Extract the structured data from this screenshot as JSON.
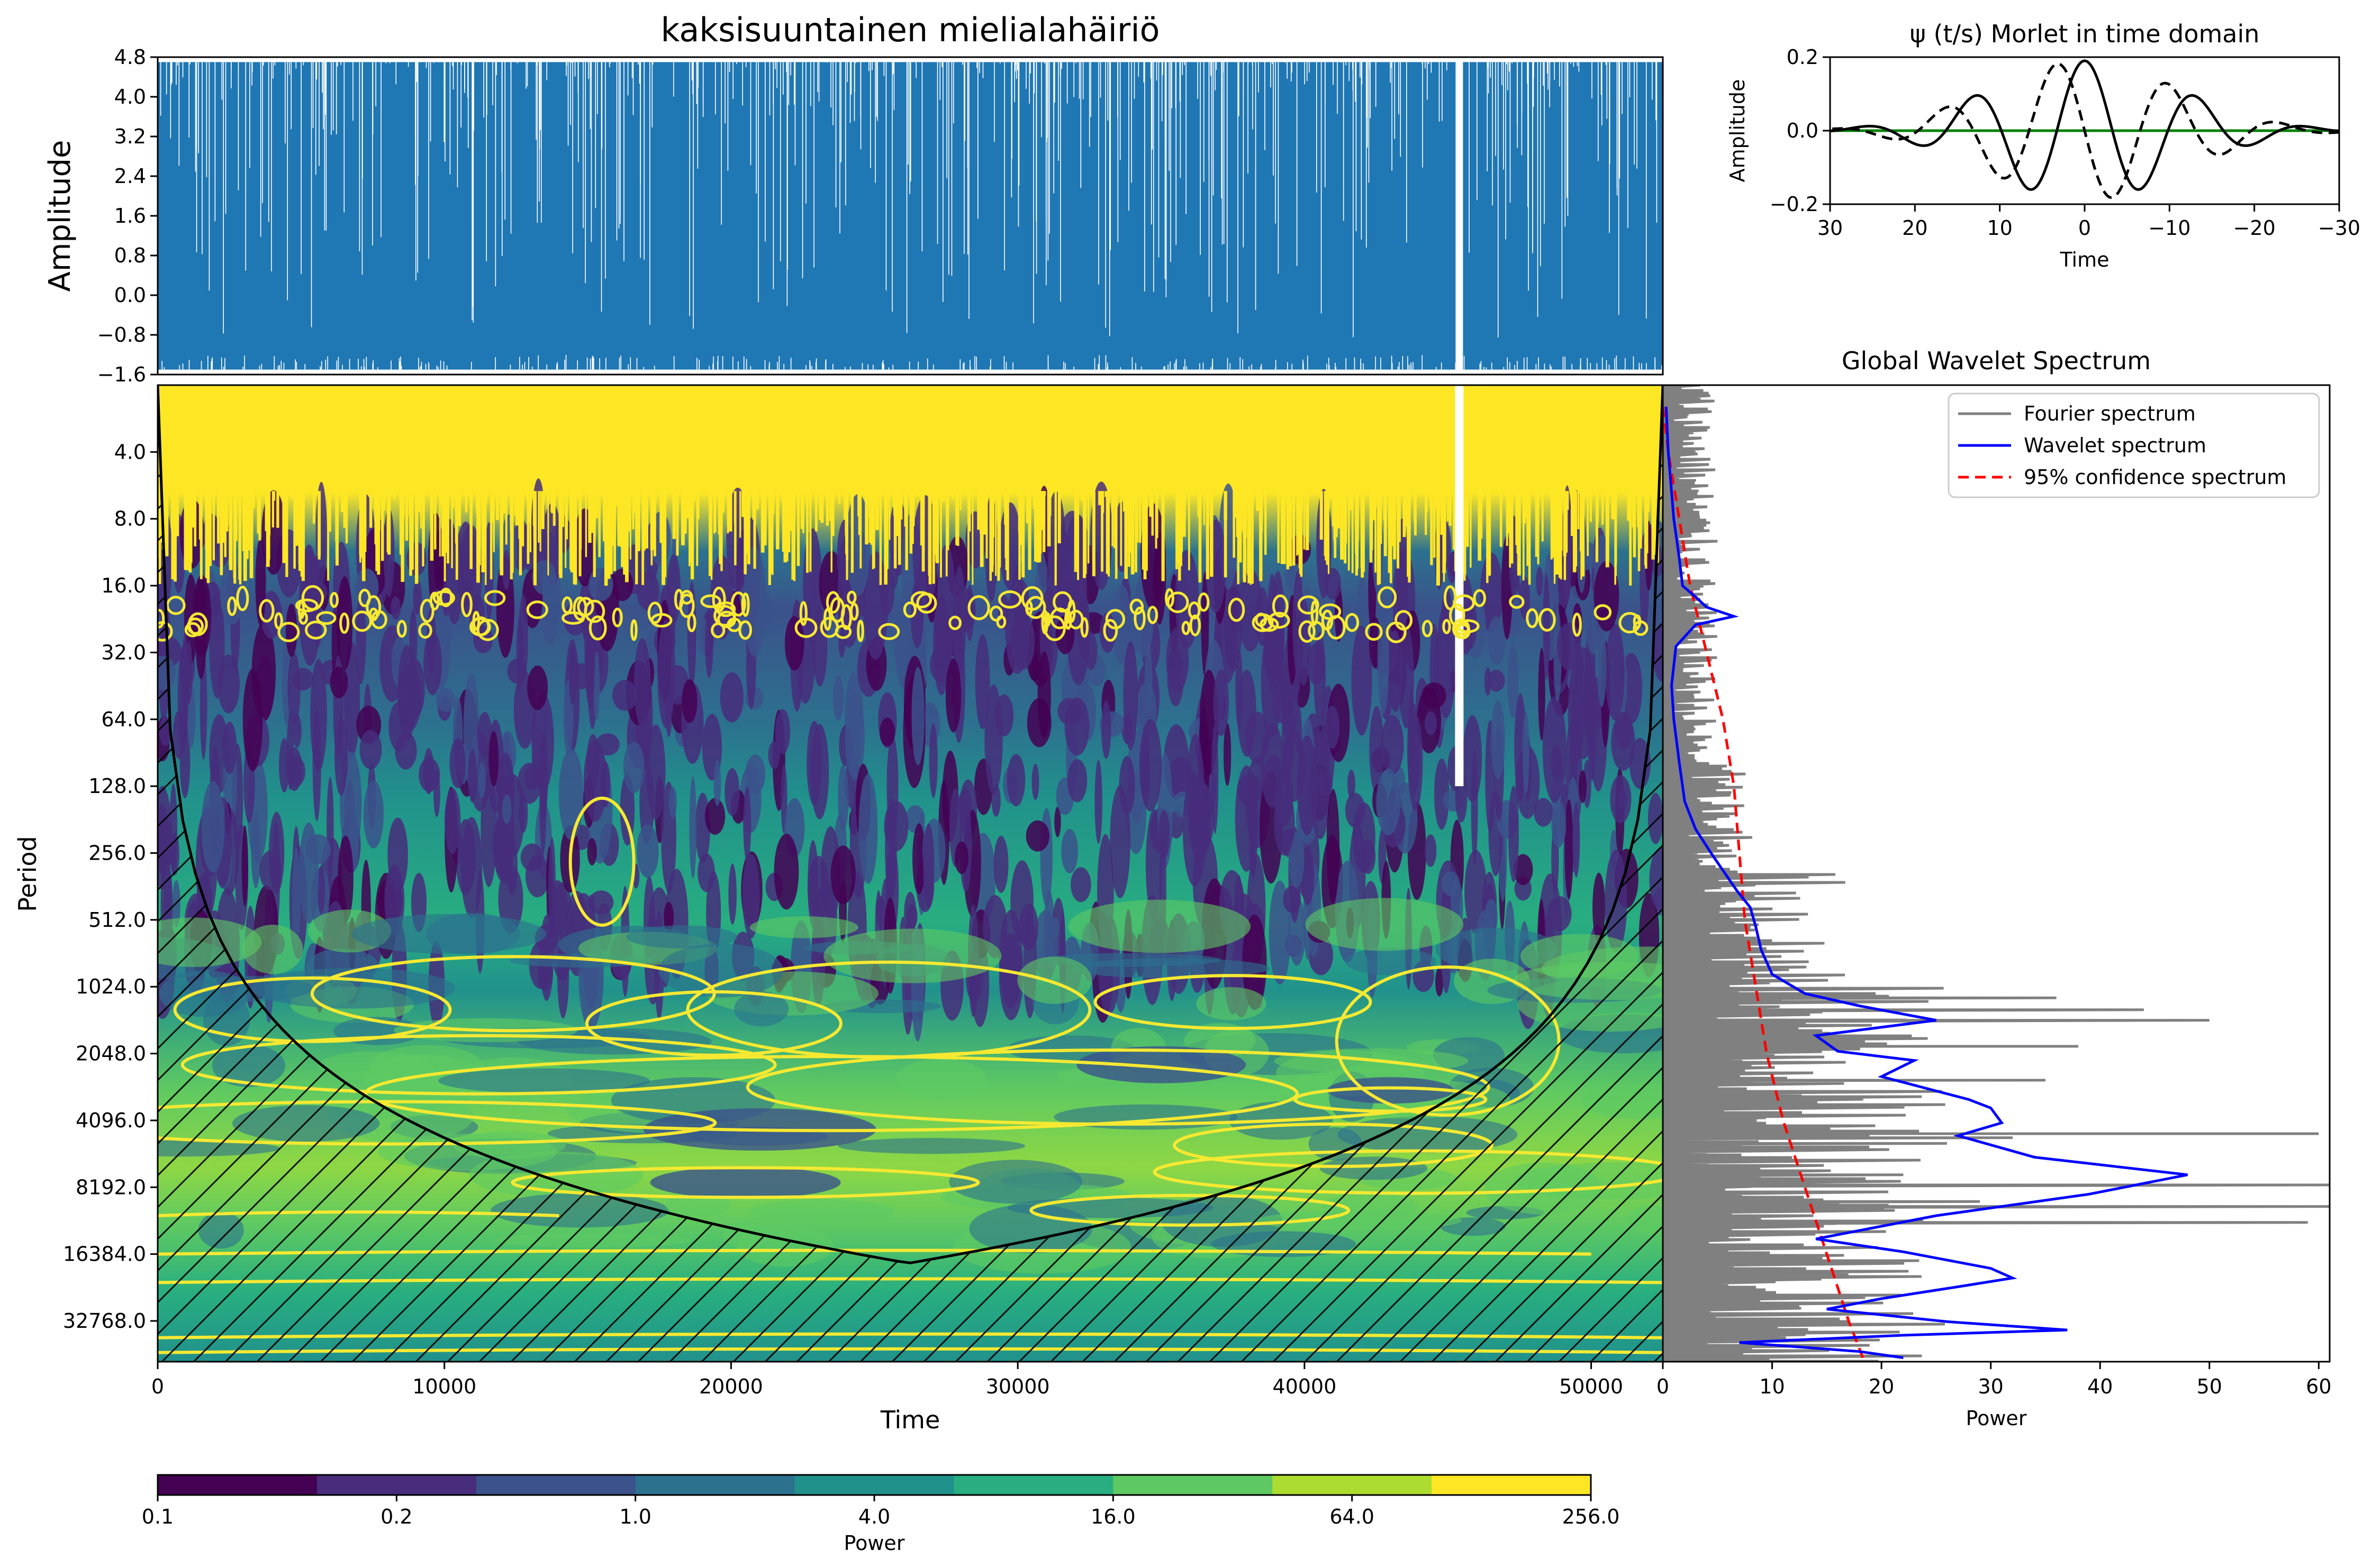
{
  "figure": {
    "title": "kaksisuuntainen mielialahäiriö"
  },
  "chart_data": [
    {
      "panel": "signal",
      "type": "area",
      "ylabel": "Amplitude",
      "xlim": [
        0,
        52500
      ],
      "ylim": [
        -1.6,
        4.8
      ],
      "yticks": [
        "4.8",
        "4.0",
        "3.2",
        "2.4",
        "1.6",
        "0.8",
        "0.0",
        "−0.8",
        "−1.6"
      ],
      "yticks_values": [
        4.8,
        4.0,
        3.2,
        2.4,
        1.6,
        0.8,
        0.0,
        -0.8,
        -1.6
      ],
      "baseline": -1.5,
      "max": 4.7,
      "gap_time": 45400,
      "color": "#1f77b4"
    },
    {
      "panel": "wavelet",
      "type": "heatmap",
      "xlabel": "Time",
      "ylabel": "Period",
      "xlim": [
        0,
        52500
      ],
      "ylim_period": [
        2,
        50000
      ],
      "xticks": [
        "0",
        "10000",
        "20000",
        "30000",
        "40000",
        "50000"
      ],
      "xticks_values": [
        0,
        10000,
        20000,
        30000,
        40000,
        50000
      ],
      "yticks": [
        "4.0",
        "8.0",
        "16.0",
        "32.0",
        "64.0",
        "128.0",
        "256.0",
        "512.0",
        "1024.0",
        "2048.0",
        "4096.0",
        "8192.0",
        "16384.0",
        "32768.0"
      ],
      "yticks_values": [
        4,
        8,
        16,
        32,
        64,
        128,
        256,
        512,
        1024,
        2048,
        4096,
        8192,
        16384,
        32768
      ],
      "coi_peak": {
        "time": 26200,
        "period": 18000
      },
      "significance_contour_color": "#f7e932",
      "coi_line_color": "#000000"
    },
    {
      "panel": "colorbar",
      "type": "heatmap",
      "xlabel": "Power",
      "ticks": [
        "0.1",
        "0.2",
        "1.0",
        "4.0",
        "16.0",
        "64.0",
        "256.0"
      ],
      "colors": [
        "#440154",
        "#472d7b",
        "#3b528b",
        "#2c728e",
        "#21918c",
        "#28ae80",
        "#5ec962",
        "#addc30",
        "#fde725"
      ]
    },
    {
      "panel": "morlet",
      "type": "line",
      "title": "ψ (t/s) Morlet in time domain",
      "xlabel": "Time",
      "ylabel": "Amplitude",
      "xlim": [
        30,
        -30
      ],
      "ylim": [
        -0.2,
        0.2
      ],
      "xticks": [
        "30",
        "20",
        "10",
        "0",
        "−10",
        "−20",
        "−30"
      ],
      "xticks_values": [
        30,
        20,
        10,
        0,
        -10,
        -20,
        -30
      ],
      "yticks": [
        "0.2",
        "0.0",
        "−0.2"
      ],
      "yticks_values": [
        0.2,
        0.0,
        -0.2
      ],
      "series": [
        {
          "part": "real",
          "color": "#000000",
          "style": "solid"
        },
        {
          "part": "imaginary",
          "color": "#000000",
          "style": "dashed"
        },
        {
          "part": "zero",
          "color": "#008000",
          "style": "solid"
        }
      ]
    },
    {
      "panel": "global-spectrum",
      "type": "line",
      "title": "Global Wavelet Spectrum",
      "xlabel": "Power",
      "xlim": [
        0,
        61
      ],
      "xticks": [
        "0",
        "10",
        "20",
        "30",
        "40",
        "50",
        "60"
      ],
      "xticks_values": [
        0,
        10,
        20,
        30,
        40,
        50,
        60
      ],
      "legend_position": "top-right",
      "legend": [
        "Fourier spectrum",
        "Wavelet spectrum",
        "95% confidence spectrum"
      ],
      "series": [
        {
          "name": "Wavelet spectrum",
          "color": "#0000ff",
          "style": "solid",
          "points": [
            [
              0.3,
              2.5
            ],
            [
              0.5,
              4
            ],
            [
              1,
              8
            ],
            [
              1.5,
              12
            ],
            [
              1.8,
              16
            ],
            [
              3,
              18
            ],
            [
              4,
              20
            ],
            [
              6.5,
              22
            ],
            [
              3,
              24
            ],
            [
              1.2,
              30
            ],
            [
              0.8,
              45
            ],
            [
              1,
              64
            ],
            [
              1.5,
              100
            ],
            [
              2,
              150
            ],
            [
              3,
              200
            ],
            [
              4.5,
              260
            ],
            [
              6.8,
              380
            ],
            [
              8,
              450
            ],
            [
              8.5,
              550
            ],
            [
              9,
              700
            ],
            [
              10,
              900
            ],
            [
              13,
              1100
            ],
            [
              18,
              1250
            ],
            [
              25,
              1450
            ],
            [
              14,
              1700
            ],
            [
              16,
              2000
            ],
            [
              23,
              2200
            ],
            [
              20,
              2600
            ],
            [
              28,
              3300
            ],
            [
              30,
              3600
            ],
            [
              31,
              4200
            ],
            [
              27,
              4800
            ],
            [
              34,
              6000
            ],
            [
              48,
              7200
            ],
            [
              39,
              8800
            ],
            [
              25,
              11000
            ],
            [
              14,
              14000
            ],
            [
              22,
              16000
            ],
            [
              30,
              19000
            ],
            [
              32,
              21000
            ],
            [
              27,
              23000
            ],
            [
              20,
              26000
            ],
            [
              15,
              29000
            ],
            [
              26,
              33000
            ],
            [
              37,
              36000
            ],
            [
              22,
              38000
            ],
            [
              7,
              41000
            ],
            [
              18,
              45000
            ],
            [
              22,
              48000
            ]
          ]
        },
        {
          "name": "95% confidence spectrum",
          "color": "#ff0000",
          "style": "dashed",
          "points": [
            [
              0,
              2.5
            ],
            [
              0.5,
              4
            ],
            [
              1.5,
              8
            ],
            [
              2.5,
              16
            ],
            [
              4,
              32
            ],
            [
              5.5,
              64
            ],
            [
              6.5,
              128
            ],
            [
              7,
              256
            ],
            [
              7.5,
              512
            ],
            [
              8.5,
              1024
            ],
            [
              9.5,
              2048
            ],
            [
              11,
              4096
            ],
            [
              13,
              8192
            ],
            [
              15,
              16384
            ],
            [
              17,
              32768
            ],
            [
              18.3,
              48000
            ]
          ]
        },
        {
          "name": "Fourier spectrum",
          "color": "#808080",
          "style": "solid",
          "peaks": [
            [
              36,
              1150
            ],
            [
              44,
              1300
            ],
            [
              50,
              1450
            ],
            [
              60,
              4700
            ],
            [
              32,
              4900
            ],
            [
              22,
              7200
            ],
            [
              61,
              8000
            ],
            [
              61,
              10000
            ],
            [
              59,
              11800
            ],
            [
              29,
              9500
            ],
            [
              38,
              1900
            ],
            [
              35,
              2700
            ],
            [
              26,
              5200
            ]
          ]
        }
      ]
    }
  ]
}
